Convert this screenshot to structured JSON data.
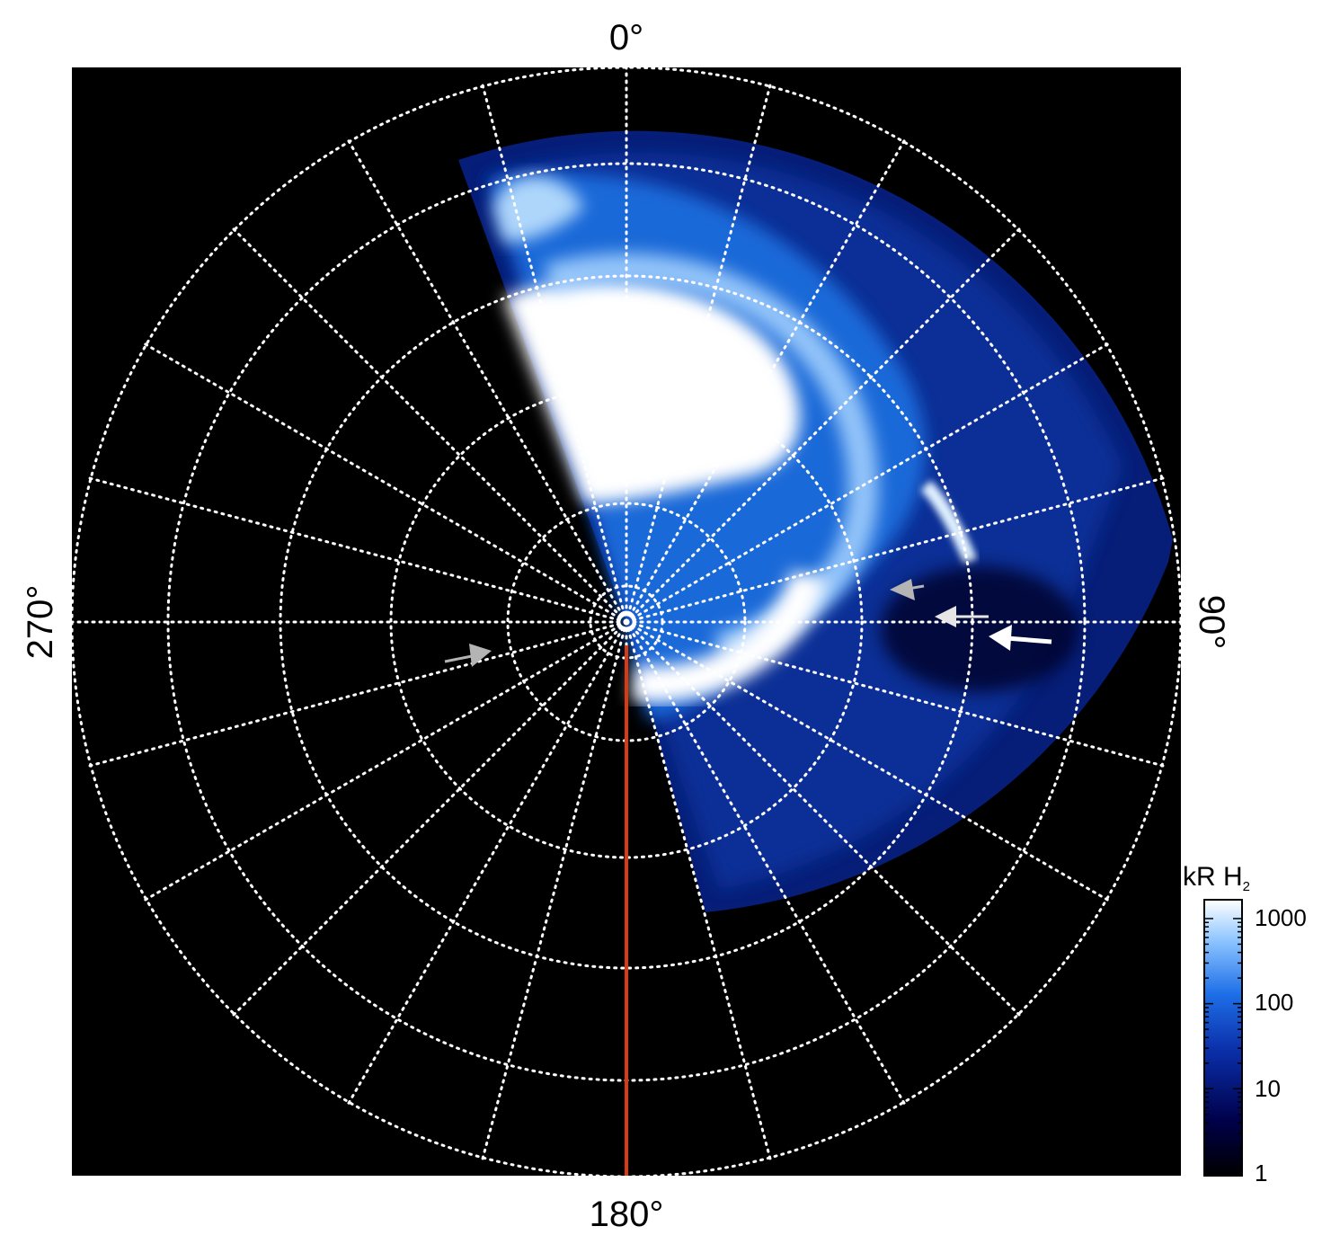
{
  "figure": {
    "description_free": true,
    "labels": {
      "top": "0°",
      "bottom": "180°",
      "left": "270°",
      "right": "90°"
    },
    "colorbar": {
      "title_main": "kR H",
      "title_sub": "2",
      "ticks": [
        "1000",
        "100",
        "10",
        "1"
      ],
      "colors": [
        "#000000",
        "#00004a",
        "#0a2ea8",
        "#1e6fe8",
        "#8cc4ff",
        "#ffffff"
      ]
    },
    "colors": {
      "background": "#000000",
      "grid": "#ffffff",
      "meridian_line": "#d83a12",
      "arrow_white": "#ffffff",
      "arrow_gray": "#b4b4b4"
    }
  }
}
